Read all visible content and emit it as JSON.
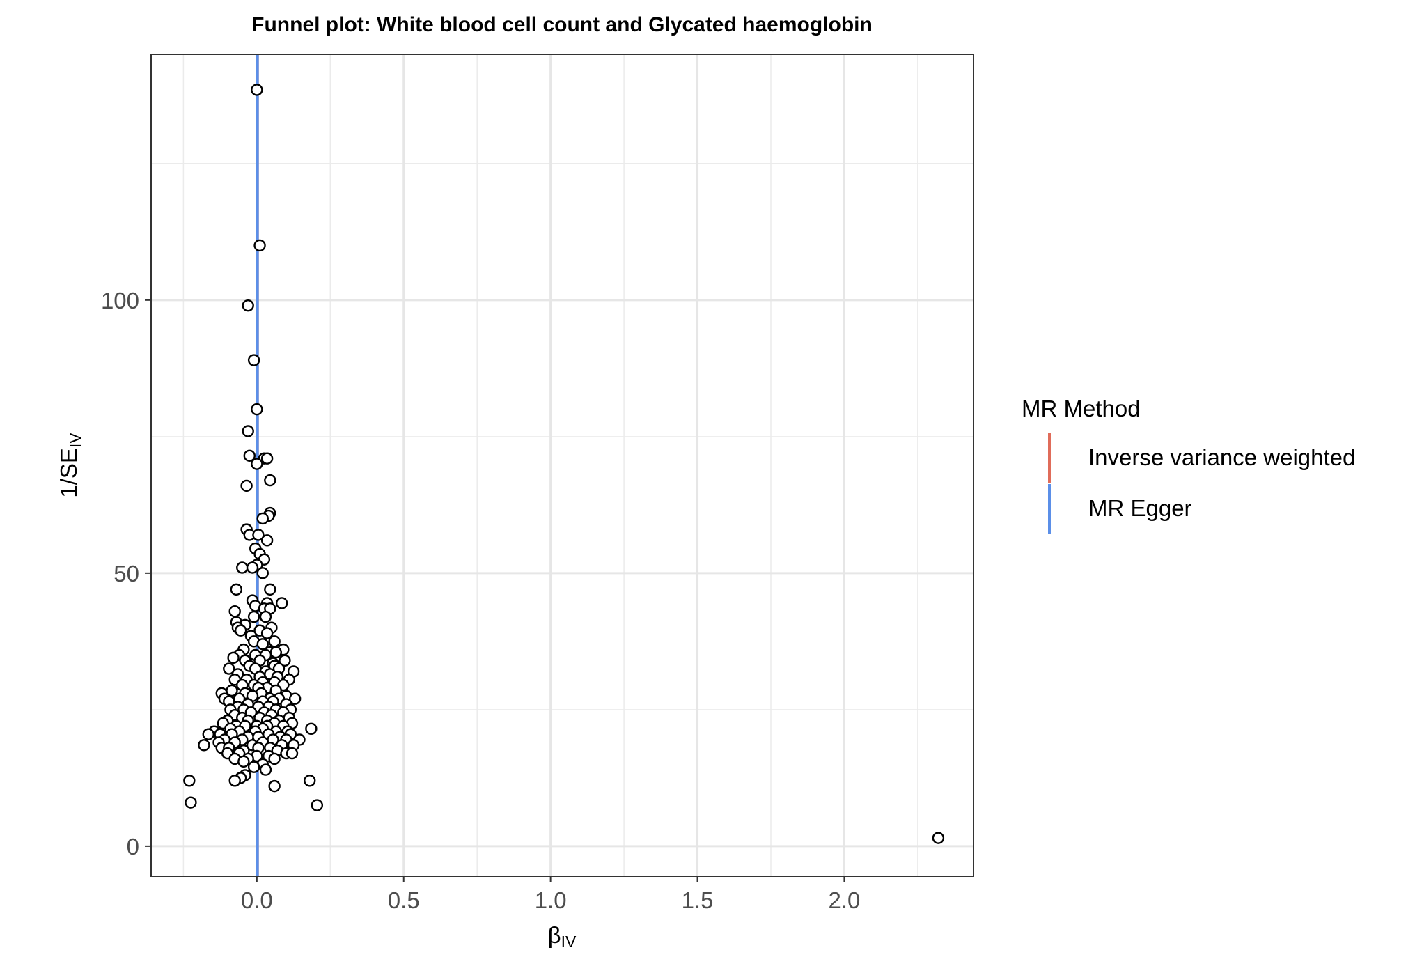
{
  "chart_data": {
    "type": "scatter",
    "title": "Funnel plot: White blood cell count and Glycated haemoglobin",
    "xlabel": {
      "main": "β",
      "sub": "IV"
    },
    "ylabel": {
      "main": "1/SE",
      "sub": "IV"
    },
    "xlim": [
      -0.36,
      2.44
    ],
    "ylim": [
      -5.5,
      145
    ],
    "x_ticks": [
      0.0,
      0.5,
      1.0,
      1.5,
      2.0
    ],
    "x_tick_labels": [
      "0.0",
      "0.5",
      "1.0",
      "1.5",
      "2.0"
    ],
    "y_ticks": [
      0,
      50,
      100
    ],
    "y_tick_labels": [
      "0",
      "50",
      "100"
    ],
    "grid": true,
    "legend": {
      "title": "MR Method",
      "position": "right",
      "entries": [
        {
          "label": "Inverse variance weighted",
          "color": "#E06C5A"
        },
        {
          "label": "MR Egger",
          "color": "#5B8FE8"
        }
      ]
    },
    "vlines": [
      {
        "method": "Inverse variance weighted",
        "x": 0.002,
        "color": "#E06C5A"
      },
      {
        "method": "MR Egger",
        "x": 0.002,
        "color": "#5B8FE8"
      }
    ],
    "points": [
      [
        0.0,
        138.5
      ],
      [
        0.01,
        110.0
      ],
      [
        -0.03,
        99.0
      ],
      [
        -0.01,
        89.0
      ],
      [
        0.0,
        80.0
      ],
      [
        -0.03,
        76.0
      ],
      [
        -0.025,
        71.5
      ],
      [
        0.025,
        71.0
      ],
      [
        0.035,
        71.0
      ],
      [
        0.0,
        70.0
      ],
      [
        -0.035,
        66.0
      ],
      [
        0.045,
        67.0
      ],
      [
        0.045,
        61.0
      ],
      [
        0.04,
        60.5
      ],
      [
        0.02,
        60.0
      ],
      [
        -0.035,
        58.0
      ],
      [
        -0.025,
        57.0
      ],
      [
        0.005,
        57.0
      ],
      [
        0.035,
        56.0
      ],
      [
        -0.005,
        54.5
      ],
      [
        0.01,
        53.5
      ],
      [
        0.025,
        52.5
      ],
      [
        0.0,
        51.5
      ],
      [
        -0.05,
        51.0
      ],
      [
        -0.015,
        51.0
      ],
      [
        0.02,
        50.0
      ],
      [
        -0.07,
        47.0
      ],
      [
        0.045,
        47.0
      ],
      [
        -0.015,
        45.0
      ],
      [
        0.085,
        44.5
      ],
      [
        0.035,
        44.5
      ],
      [
        -0.005,
        44.0
      ],
      [
        0.025,
        43.5
      ],
      [
        0.045,
        43.5
      ],
      [
        -0.075,
        43.0
      ],
      [
        -0.01,
        42.0
      ],
      [
        0.03,
        42.0
      ],
      [
        -0.07,
        41.0
      ],
      [
        -0.04,
        40.5
      ],
      [
        -0.065,
        40.0
      ],
      [
        0.05,
        40.0
      ],
      [
        -0.055,
        39.5
      ],
      [
        0.01,
        39.5
      ],
      [
        0.035,
        39.0
      ],
      [
        -0.02,
        38.5
      ],
      [
        0.06,
        37.5
      ],
      [
        -0.01,
        37.5
      ],
      [
        0.02,
        37.0
      ],
      [
        -0.045,
        36.0
      ],
      [
        0.09,
        36.0
      ],
      [
        0.045,
        35.5
      ],
      [
        0.065,
        35.5
      ],
      [
        -0.06,
        35.0
      ],
      [
        -0.005,
        35.0
      ],
      [
        0.03,
        35.0
      ],
      [
        -0.08,
        34.5
      ],
      [
        0.095,
        34.0
      ],
      [
        -0.04,
        34.0
      ],
      [
        0.01,
        34.0
      ],
      [
        0.055,
        33.5
      ],
      [
        -0.025,
        33.0
      ],
      [
        0.06,
        33.0
      ],
      [
        0.075,
        32.5
      ],
      [
        -0.095,
        32.5
      ],
      [
        -0.005,
        32.5
      ],
      [
        0.03,
        32.0
      ],
      [
        0.125,
        32.0
      ],
      [
        -0.065,
        31.5
      ],
      [
        0.045,
        31.5
      ],
      [
        0.01,
        31.0
      ],
      [
        0.07,
        31.0
      ],
      [
        0.11,
        30.5
      ],
      [
        -0.075,
        30.5
      ],
      [
        -0.035,
        30.5
      ],
      [
        0.06,
        30.0
      ],
      [
        0.02,
        30.0
      ],
      [
        -0.01,
        29.5
      ],
      [
        0.09,
        29.5
      ],
      [
        -0.05,
        29.5
      ],
      [
        0.035,
        29.0
      ],
      [
        0.005,
        29.0
      ],
      [
        -0.085,
        28.5
      ],
      [
        0.065,
        28.5
      ],
      [
        -0.12,
        28.0
      ],
      [
        -0.04,
        28.0
      ],
      [
        0.015,
        28.0
      ],
      [
        0.1,
        27.5
      ],
      [
        -0.015,
        27.5
      ],
      [
        0.045,
        27.0
      ],
      [
        -0.11,
        27.0
      ],
      [
        0.13,
        27.0
      ],
      [
        -0.06,
        27.0
      ],
      [
        0.075,
        27.0
      ],
      [
        -0.095,
        26.5
      ],
      [
        0.02,
        26.5
      ],
      [
        0.055,
        26.5
      ],
      [
        -0.03,
        26.0
      ],
      [
        0.1,
        26.0
      ],
      [
        -0.065,
        25.5
      ],
      [
        0.005,
        25.5
      ],
      [
        0.04,
        25.5
      ],
      [
        0.115,
        25.0
      ],
      [
        -0.045,
        25.0
      ],
      [
        0.065,
        25.0
      ],
      [
        -0.09,
        25.0
      ],
      [
        0.025,
        24.5
      ],
      [
        0.09,
        24.5
      ],
      [
        -0.02,
        24.5
      ],
      [
        -0.075,
        24.0
      ],
      [
        0.05,
        24.0
      ],
      [
        0.11,
        23.5
      ],
      [
        -0.05,
        23.5
      ],
      [
        0.01,
        23.5
      ],
      [
        0.075,
        23.0
      ],
      [
        -0.1,
        23.0
      ],
      [
        -0.03,
        23.0
      ],
      [
        0.035,
        23.0
      ],
      [
        -0.115,
        22.5
      ],
      [
        0.12,
        22.5
      ],
      [
        0.06,
        22.5
      ],
      [
        -0.07,
        22.0
      ],
      [
        0.0,
        22.0
      ],
      [
        0.09,
        22.0
      ],
      [
        0.035,
        22.0
      ],
      [
        -0.04,
        22.0
      ],
      [
        0.185,
        21.5
      ],
      [
        -0.09,
        21.5
      ],
      [
        0.02,
        21.5
      ],
      [
        -0.145,
        21.0
      ],
      [
        0.105,
        21.0
      ],
      [
        -0.06,
        21.0
      ],
      [
        0.065,
        21.0
      ],
      [
        -0.005,
        21.0
      ],
      [
        -0.125,
        20.5
      ],
      [
        0.115,
        20.5
      ],
      [
        -0.165,
        20.5
      ],
      [
        0.04,
        20.5
      ],
      [
        -0.085,
        20.5
      ],
      [
        0.08,
        20.0
      ],
      [
        -0.03,
        20.0
      ],
      [
        0.005,
        20.0
      ],
      [
        0.145,
        19.5
      ],
      [
        -0.11,
        19.5
      ],
      [
        -0.05,
        19.5
      ],
      [
        0.1,
        19.5
      ],
      [
        0.055,
        19.5
      ],
      [
        -0.13,
        19.0
      ],
      [
        -0.075,
        19.0
      ],
      [
        0.02,
        19.0
      ],
      [
        -0.18,
        18.5
      ],
      [
        0.125,
        18.5
      ],
      [
        0.085,
        18.5
      ],
      [
        -0.015,
        18.5
      ],
      [
        -0.12,
        18.0
      ],
      [
        -0.095,
        18.0
      ],
      [
        0.045,
        18.0
      ],
      [
        0.005,
        18.0
      ],
      [
        0.07,
        17.5
      ],
      [
        -0.045,
        17.5
      ],
      [
        0.1,
        17.0
      ],
      [
        -0.1,
        17.0
      ],
      [
        0.12,
        17.0
      ],
      [
        -0.06,
        17.0
      ],
      [
        0.0,
        16.5
      ],
      [
        0.04,
        16.5
      ],
      [
        -0.03,
        16.0
      ],
      [
        -0.075,
        16.0
      ],
      [
        0.06,
        16.0
      ],
      [
        -0.045,
        15.5
      ],
      [
        0.02,
        15.0
      ],
      [
        -0.01,
        14.5
      ],
      [
        0.03,
        14.0
      ],
      [
        -0.04,
        13.0
      ],
      [
        -0.055,
        12.5
      ],
      [
        -0.075,
        12.0
      ],
      [
        -0.23,
        12.0
      ],
      [
        0.18,
        12.0
      ],
      [
        0.06,
        11.0
      ],
      [
        -0.225,
        8.0
      ],
      [
        0.205,
        7.5
      ],
      [
        2.32,
        1.5
      ]
    ]
  }
}
